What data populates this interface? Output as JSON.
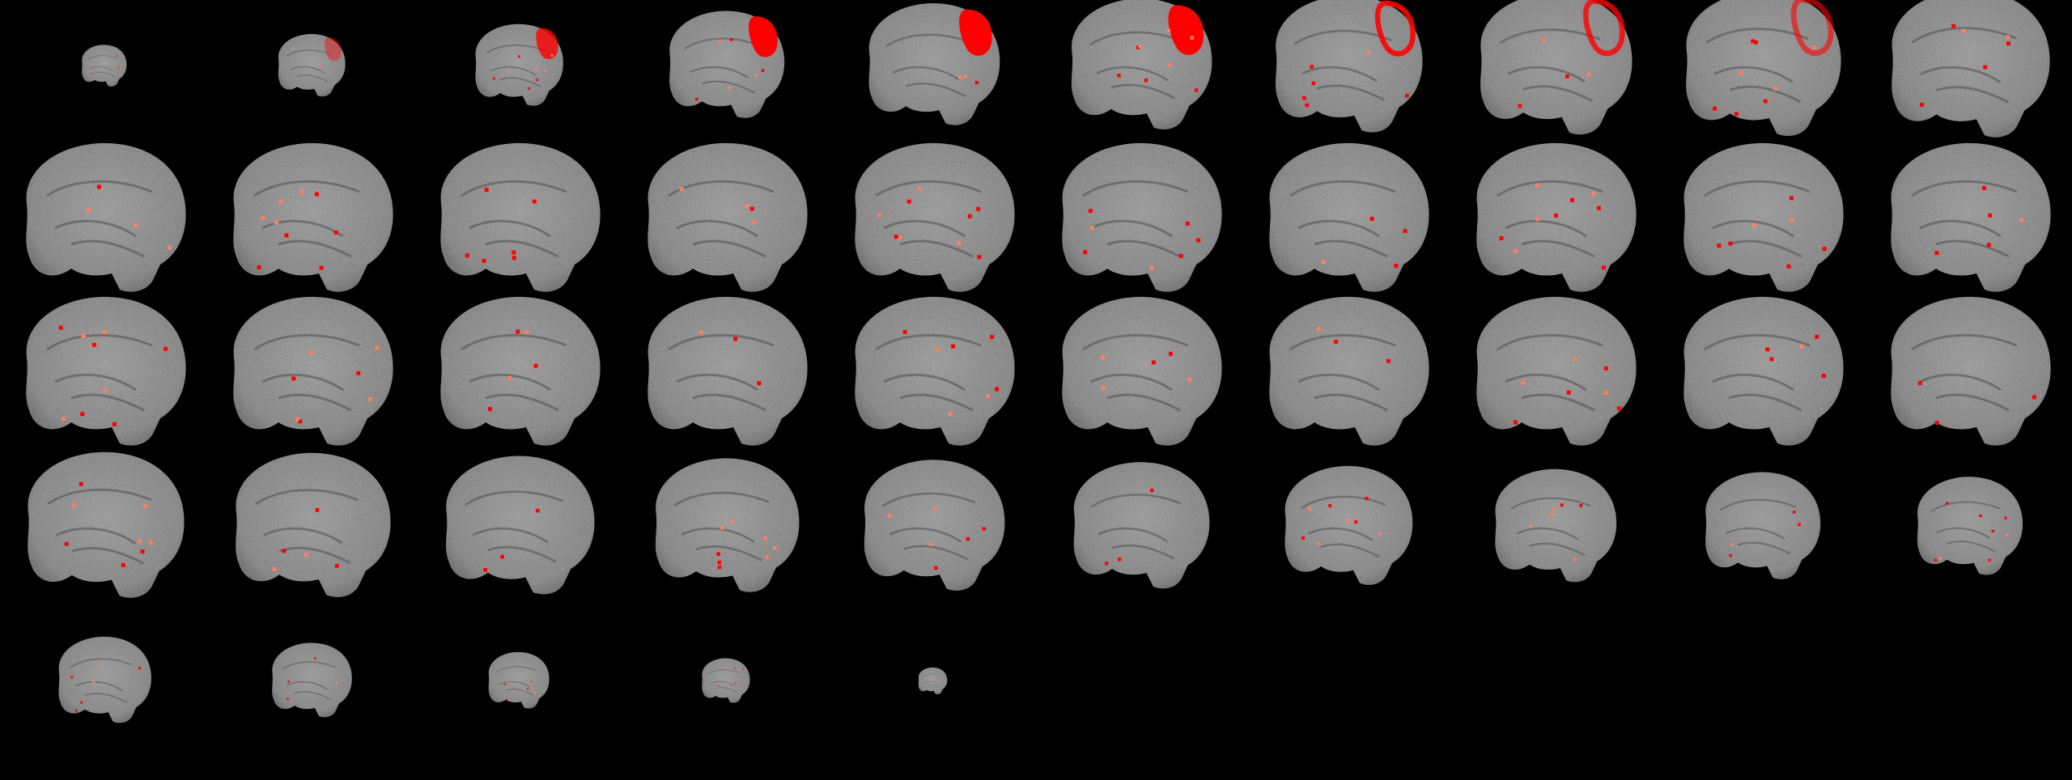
{
  "mosaic": {
    "view": "sagittal",
    "background_color": "#000000",
    "tissue_color": "#8c8c8c",
    "overlay_color": "#ff0000",
    "overlay_light_color": "#ff8060",
    "columns": 10,
    "rows": 5,
    "slice_count": 45
  }
}
